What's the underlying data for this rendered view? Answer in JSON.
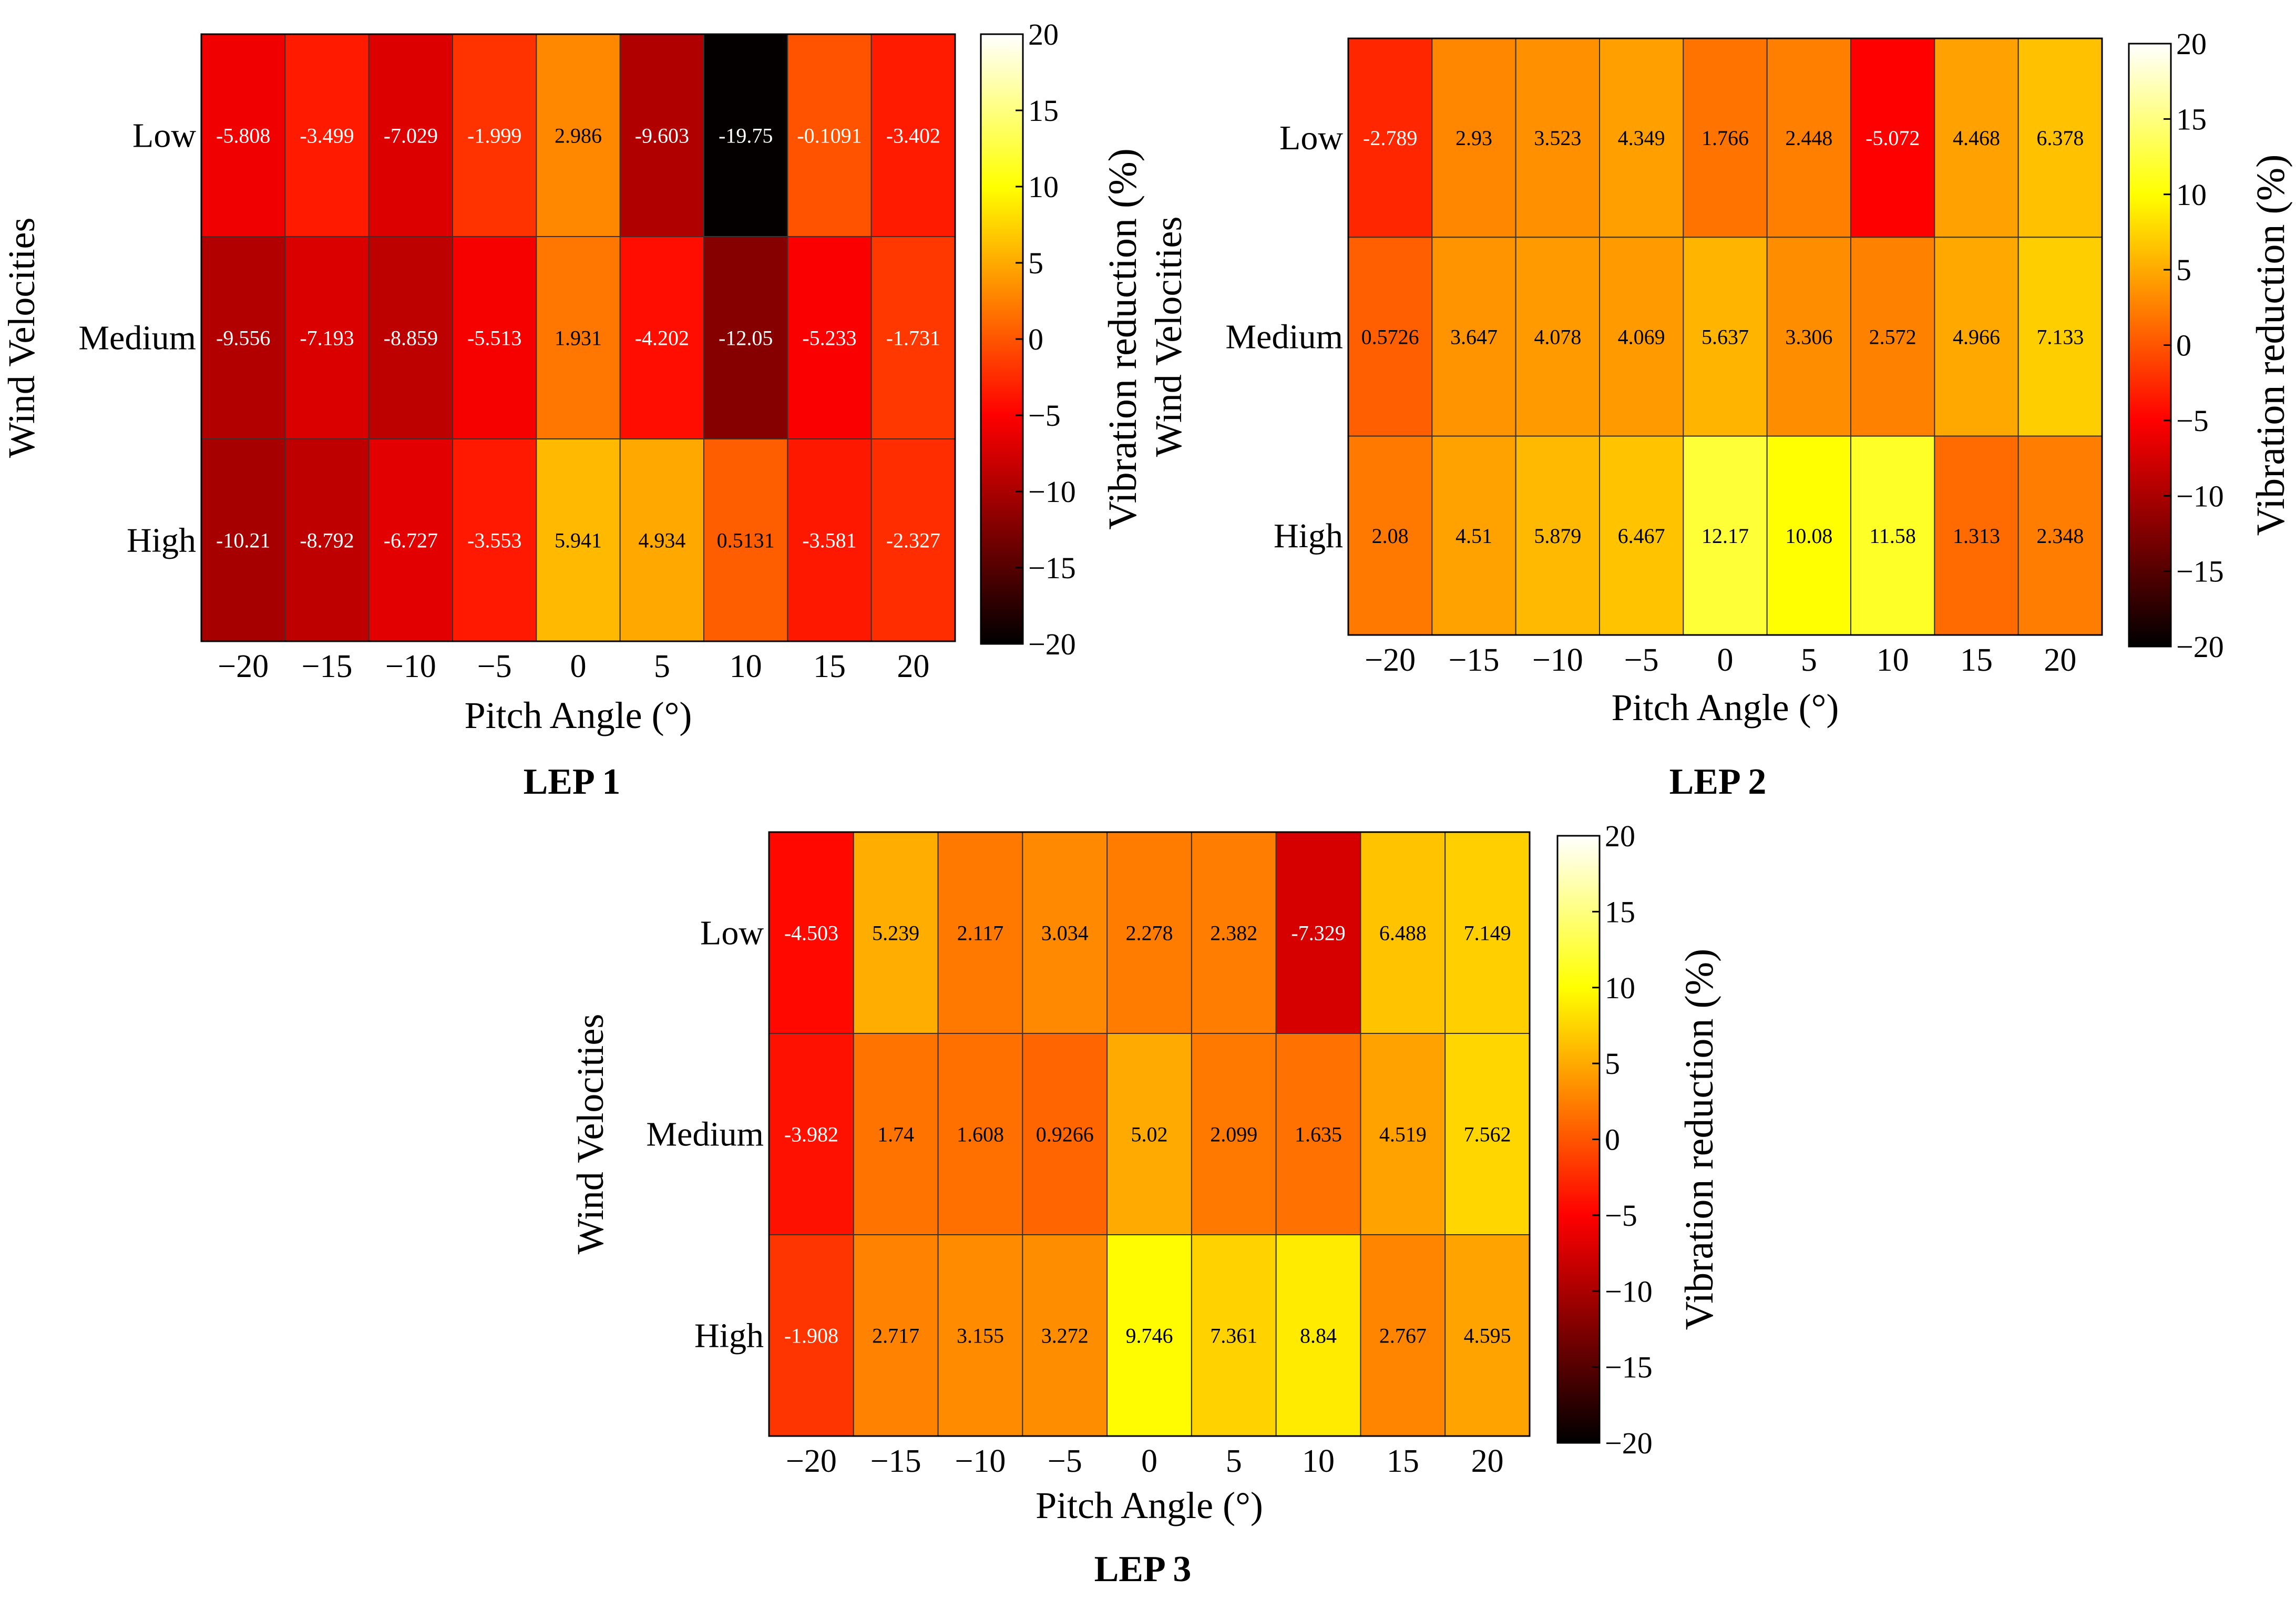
{
  "chart_data": [
    {
      "type": "heatmap",
      "title": "LEP 1",
      "xlabel": "Pitch Angle (°)",
      "ylabel": "Wind Velocities",
      "colorbar_label": "Vibration reduction (%)",
      "x_ticks": [
        "−20",
        "−15",
        "−10",
        "−5",
        "0",
        "5",
        "10",
        "15",
        "20"
      ],
      "y_ticks": [
        "Low",
        "Medium",
        "High"
      ],
      "colorbar_ticks": [
        "20",
        "15",
        "10",
        "5",
        "0",
        "−5",
        "−10",
        "−15",
        "−20"
      ],
      "clim": [
        -20,
        20
      ],
      "values": [
        [
          -5.808,
          -3.499,
          -7.029,
          -1.999,
          2.986,
          -9.603,
          -19.75,
          -0.1091,
          -3.402
        ],
        [
          -9.556,
          -7.193,
          -8.859,
          -5.513,
          1.931,
          -4.202,
          -12.05,
          -5.233,
          -1.731
        ],
        [
          -10.21,
          -8.792,
          -6.727,
          -3.553,
          5.941,
          4.934,
          0.5131,
          -3.581,
          -2.327
        ]
      ],
      "labels": [
        [
          "-5.808",
          "-3.499",
          "-7.029",
          "-1.999",
          "2.986",
          "-9.603",
          "-19.75",
          "-0.1091",
          "-3.402"
        ],
        [
          "-9.556",
          "-7.193",
          "-8.859",
          "-5.513",
          "1.931",
          "-4.202",
          "-12.05",
          "-5.233",
          "-1.731"
        ],
        [
          "-10.21",
          "-8.792",
          "-6.727",
          "-3.553",
          "5.941",
          "4.934",
          "0.5131",
          "-3.581",
          "-2.327"
        ]
      ]
    },
    {
      "type": "heatmap",
      "title": "LEP 2",
      "xlabel": "Pitch Angle (°)",
      "ylabel": "Wind Velocities",
      "colorbar_label": "Vibration reduction (%)",
      "x_ticks": [
        "−20",
        "−15",
        "−10",
        "−5",
        "0",
        "5",
        "10",
        "15",
        "20"
      ],
      "y_ticks": [
        "Low",
        "Medium",
        "High"
      ],
      "colorbar_ticks": [
        "20",
        "15",
        "10",
        "5",
        "0",
        "−5",
        "−10",
        "−15",
        "−20"
      ],
      "clim": [
        -20,
        20
      ],
      "values": [
        [
          -2.789,
          2.93,
          3.523,
          4.349,
          1.766,
          2.448,
          -5.072,
          4.468,
          6.378
        ],
        [
          0.5726,
          3.647,
          4.078,
          4.069,
          5.637,
          3.306,
          2.572,
          4.966,
          7.133
        ],
        [
          2.08,
          4.51,
          5.879,
          6.467,
          12.17,
          10.08,
          11.58,
          1.313,
          2.348
        ]
      ],
      "labels": [
        [
          "-2.789",
          "2.93",
          "3.523",
          "4.349",
          "1.766",
          "2.448",
          "-5.072",
          "4.468",
          "6.378"
        ],
        [
          "0.5726",
          "3.647",
          "4.078",
          "4.069",
          "5.637",
          "3.306",
          "2.572",
          "4.966",
          "7.133"
        ],
        [
          "2.08",
          "4.51",
          "5.879",
          "6.467",
          "12.17",
          "10.08",
          "11.58",
          "1.313",
          "2.348"
        ]
      ]
    },
    {
      "type": "heatmap",
      "title": "LEP 3",
      "xlabel": "Pitch Angle (°)",
      "ylabel": "Wind Velocities",
      "colorbar_label": "Vibration reduction (%)",
      "x_ticks": [
        "−20",
        "−15",
        "−10",
        "−5",
        "0",
        "5",
        "10",
        "15",
        "20"
      ],
      "y_ticks": [
        "Low",
        "Medium",
        "High"
      ],
      "colorbar_ticks": [
        "20",
        "15",
        "10",
        "5",
        "0",
        "−5",
        "−10",
        "−15",
        "−20"
      ],
      "clim": [
        -20,
        20
      ],
      "values": [
        [
          -4.503,
          5.239,
          2.117,
          3.034,
          2.278,
          2.382,
          -7.329,
          6.488,
          7.149
        ],
        [
          -3.982,
          1.74,
          1.608,
          0.9266,
          5.02,
          2.099,
          1.635,
          4.519,
          7.562
        ],
        [
          -1.908,
          2.717,
          3.155,
          3.272,
          9.746,
          7.361,
          8.84,
          2.767,
          4.595
        ]
      ],
      "labels": [
        [
          "-4.503",
          "5.239",
          "2.117",
          "3.034",
          "2.278",
          "2.382",
          "-7.329",
          "6.488",
          "7.149"
        ],
        [
          "-3.982",
          "1.74",
          "1.608",
          "0.9266",
          "5.02",
          "2.099",
          "1.635",
          "4.519",
          "7.562"
        ],
        [
          "-1.908",
          "2.717",
          "3.155",
          "3.272",
          "9.746",
          "7.361",
          "8.84",
          "2.767",
          "4.595"
        ]
      ]
    }
  ]
}
